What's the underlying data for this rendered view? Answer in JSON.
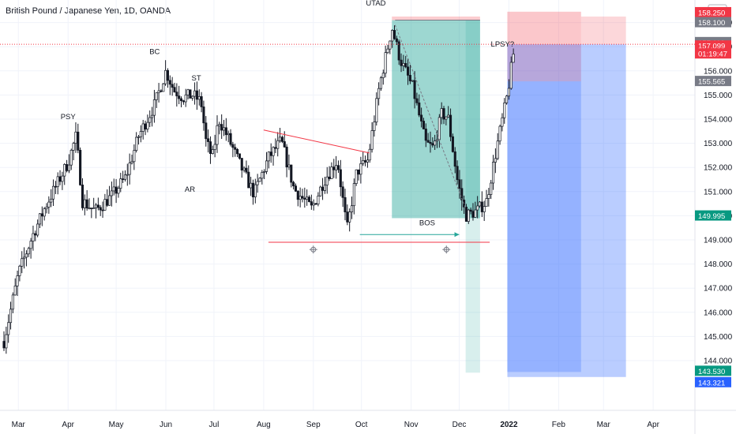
{
  "header": {
    "title": "British Pound / Japanese Yen, 1D, OANDA"
  },
  "chart_data": {
    "type": "candlestick",
    "title": "British Pound / Japanese Yen, 1D, OANDA",
    "currency": "JPY",
    "ylim": [
      143.5,
      159.0
    ],
    "y_ticks": [
      144,
      145,
      146,
      147,
      148,
      149,
      150,
      151,
      152,
      153,
      154,
      155,
      156,
      157,
      158
    ],
    "y_tick_labels": [
      "144.000",
      "145.000",
      "146.000",
      "147.000",
      "148.000",
      "149.000",
      "150.000",
      "151.000",
      "152.000",
      "153.000",
      "154.000",
      "155.000",
      "156.000",
      "157.000",
      "158.000"
    ],
    "x_ticks": [
      "Mar",
      "Apr",
      "May",
      "Jun",
      "Jul",
      "Aug",
      "Sep",
      "Oct",
      "Nov",
      "Dec",
      "2022",
      "Feb",
      "Mar",
      "Apr"
    ],
    "grid": true,
    "price_path": [
      [
        "2021-02-20",
        144.8
      ],
      [
        "2021-03-01",
        147.6
      ],
      [
        "2021-03-10",
        149.2
      ],
      [
        "2021-03-18",
        150.4
      ],
      [
        "2021-03-25",
        151.3
      ],
      [
        "2021-04-01",
        152.2
      ],
      [
        "2021-04-06",
        153.3
      ],
      [
        "2021-04-10",
        150.6
      ],
      [
        "2021-04-18",
        150.2
      ],
      [
        "2021-04-28",
        150.8
      ],
      [
        "2021-05-07",
        151.6
      ],
      [
        "2021-05-15",
        153.3
      ],
      [
        "2021-05-25",
        154.6
      ],
      [
        "2021-06-01",
        156.0
      ],
      [
        "2021-06-06",
        155.2
      ],
      [
        "2021-06-12",
        154.9
      ],
      [
        "2021-06-18",
        155.0
      ],
      [
        "2021-06-23",
        154.7
      ],
      [
        "2021-06-26",
        153.1
      ],
      [
        "2021-06-30",
        152.4
      ],
      [
        "2021-07-04",
        154.0
      ],
      [
        "2021-07-10",
        153.2
      ],
      [
        "2021-07-18",
        152.0
      ],
      [
        "2021-07-26",
        150.9
      ],
      [
        "2021-08-04",
        152.4
      ],
      [
        "2021-08-12",
        153.1
      ],
      [
        "2021-08-20",
        151.1
      ],
      [
        "2021-08-31",
        150.3
      ],
      [
        "2021-09-08",
        151.5
      ],
      [
        "2021-09-16",
        152.3
      ],
      [
        "2021-09-22",
        149.4
      ],
      [
        "2021-09-28",
        151.8
      ],
      [
        "2021-10-05",
        152.3
      ],
      [
        "2021-10-12",
        155.3
      ],
      [
        "2021-10-20",
        157.8
      ],
      [
        "2021-10-25",
        156.5
      ],
      [
        "2021-11-02",
        155.3
      ],
      [
        "2021-11-10",
        153.0
      ],
      [
        "2021-11-15",
        152.8
      ],
      [
        "2021-11-20",
        154.2
      ],
      [
        "2021-11-24",
        154.1
      ],
      [
        "2021-11-30",
        151.4
      ],
      [
        "2021-12-05",
        150.0
      ],
      [
        "2021-12-12",
        150.2
      ],
      [
        "2021-12-18",
        150.6
      ],
      [
        "2021-12-24",
        152.7
      ],
      [
        "2021-12-31",
        155.0
      ],
      [
        "2022-01-04",
        156.8
      ]
    ],
    "annotations": [
      {
        "text": "PSY",
        "date": "2021-04-01",
        "price": 154.0
      },
      {
        "text": "BC",
        "date": "2021-05-25",
        "price": 156.7
      },
      {
        "text": "ST",
        "date": "2021-06-20",
        "price": 155.6
      },
      {
        "text": "AR",
        "date": "2021-06-16",
        "price": 151.0
      },
      {
        "text": "UTAD",
        "date": "2021-10-10",
        "price": 158.7
      },
      {
        "text": "LPSY?",
        "date": "2021-12-28",
        "price": 157.0
      },
      {
        "text": "BOS",
        "date": "2021-11-11",
        "price": 149.6
      }
    ],
    "price_tags": [
      {
        "label": "158.250",
        "color": "#f23645"
      },
      {
        "label": "158.250",
        "color": "#f23645"
      },
      {
        "label": "158.100",
        "color": "#787b86"
      },
      {
        "label": "157.110",
        "color": "#787b86"
      },
      {
        "label": "157.099",
        "color": "#f23645"
      },
      {
        "label": "01:19:47",
        "color": "#f23645"
      },
      {
        "label": "155.565",
        "color": "#787b86"
      },
      {
        "label": "149.995",
        "color": "#089981"
      },
      {
        "label": "143.530",
        "color": "#089981"
      },
      {
        "label": "143.321",
        "color": "#2962ff"
      }
    ],
    "current_price": 157.099,
    "colors": {
      "candle": "#131722",
      "resistance_line": "#f23645",
      "bos_arrow": "#26a69a",
      "short_profit_zone": "#26a69a",
      "stop_zone": "#f23645",
      "target_zone": "#2962ff"
    }
  }
}
